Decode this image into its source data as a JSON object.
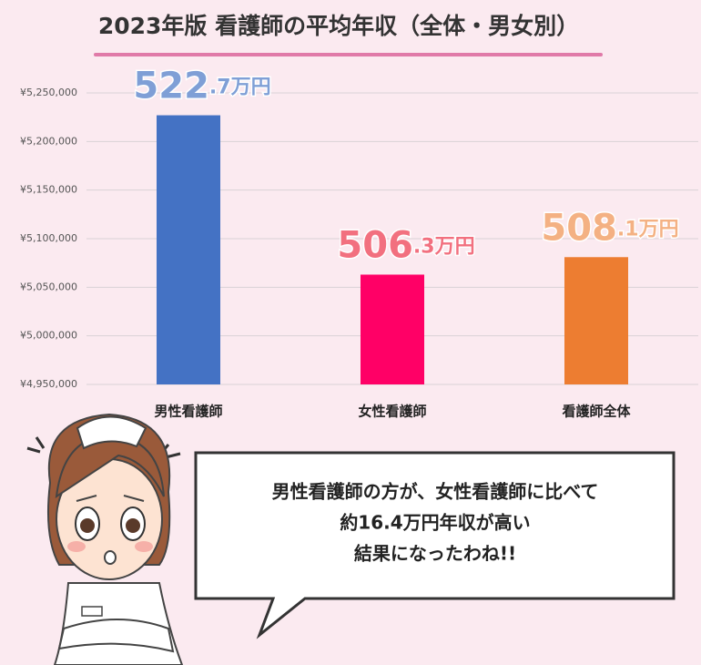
{
  "chart_data": {
    "type": "bar",
    "title": "2023年版 看護師の平均年収（全体・男女別）",
    "categories": [
      "男性看護師",
      "女性看護師",
      "看護師全体"
    ],
    "values": [
      5227000,
      5063000,
      5081000
    ],
    "value_labels": [
      "522.7万円",
      "506.3万円",
      "508.1万円"
    ],
    "colors": [
      "#4472c4",
      "#ff0066",
      "#ed7d31"
    ],
    "label_colors": [
      "#7f9fd6",
      "#f2707f",
      "#f4b183"
    ],
    "ylim": [
      4950000,
      5250000
    ],
    "yticks": [
      {
        "value": 4950000,
        "label": "¥4,950,000"
      },
      {
        "value": 5000000,
        "label": "¥5,000,000"
      },
      {
        "value": 5050000,
        "label": "¥5,050,000"
      },
      {
        "value": 5100000,
        "label": "¥5,100,000"
      },
      {
        "value": 5150000,
        "label": "¥5,150,000"
      },
      {
        "value": 5200000,
        "label": "¥5,200,000"
      },
      {
        "value": 5250000,
        "label": "¥5,250,000"
      }
    ],
    "grid": true,
    "annotation": [
      "男性看護師の方が、女性看護師に比べて",
      "約16.4万円年収が高い",
      "結果になったわね!!"
    ]
  }
}
